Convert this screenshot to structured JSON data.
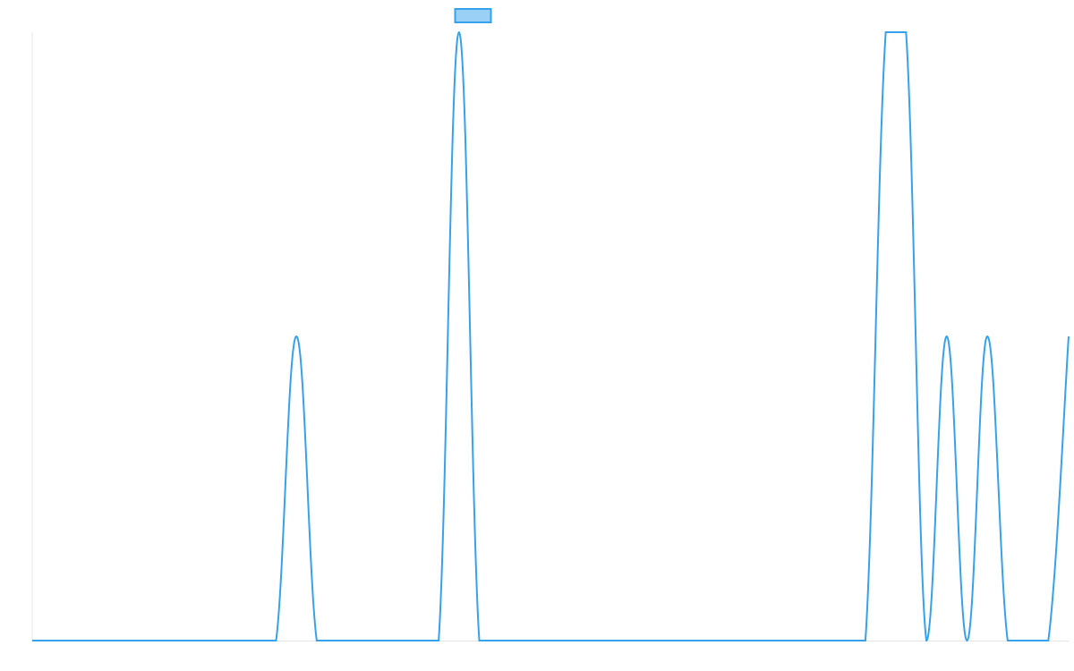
{
  "chart_data": {
    "type": "line",
    "color": "#36a2eb",
    "values": [
      0,
      0,
      0,
      0,
      0,
      0,
      0,
      0,
      0,
      0,
      0,
      0,
      0,
      1,
      0,
      0,
      0,
      0,
      0,
      0,
      0,
      2,
      0,
      0,
      0,
      0,
      0,
      0,
      0,
      0,
      0,
      0,
      0,
      0,
      0,
      0,
      0,
      0,
      0,
      0,
      0,
      0,
      2,
      2,
      0,
      1,
      0,
      1,
      0,
      0,
      0,
      1
    ],
    "ylim": [
      0,
      2
    ],
    "legend": "top"
  }
}
